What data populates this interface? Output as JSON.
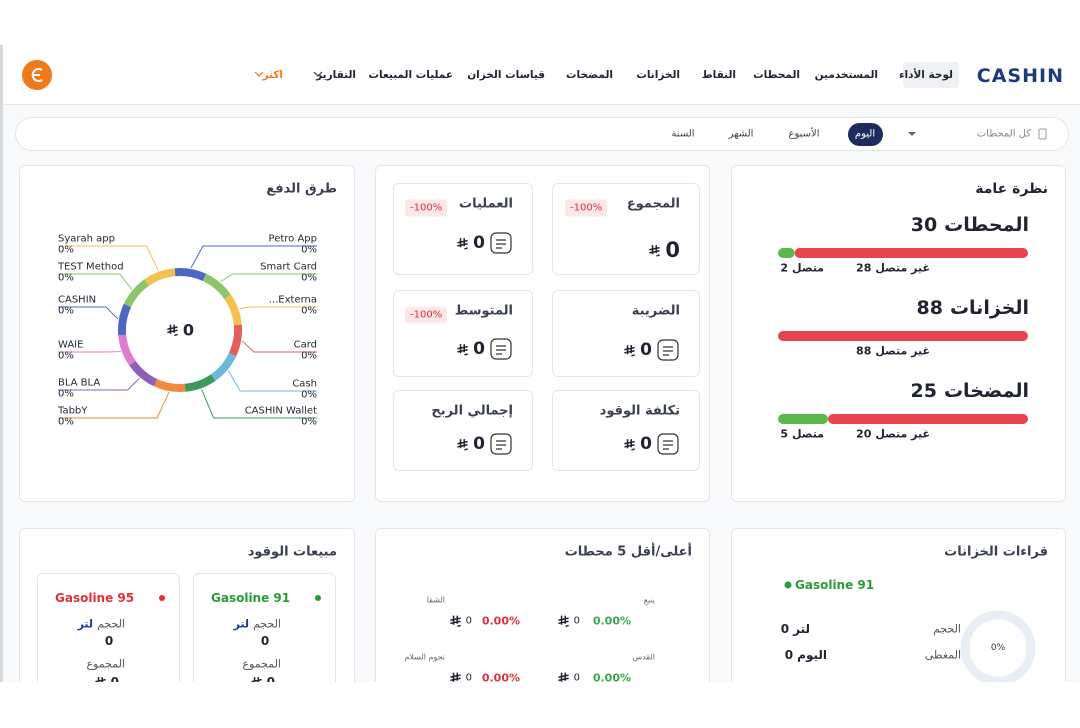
{
  "header": {
    "logo": "CASHIN",
    "nav": [
      "لوحة الأداء",
      "المستخدمين",
      "المحطات",
      "النقاط",
      "الخزانات",
      "المضخات",
      "قياسات الخزان",
      "عمليات المبيعات",
      "التقارير",
      "اكثر"
    ]
  },
  "filter": {
    "station": "كل المحطات",
    "periods": [
      "اليوم",
      "الأسبوع",
      "الشهر",
      "السنة"
    ]
  },
  "overview": {
    "title": "نظرة عامة",
    "offline_label": "غير متصل",
    "online_label": "متصل",
    "items": [
      {
        "count": 30,
        "label": "المحطات",
        "offline": 28,
        "online": 2
      },
      {
        "count": 88,
        "label": "الخزانات",
        "offline": 88
      },
      {
        "count": 25,
        "label": "المضخات",
        "offline": 20,
        "online": 5
      }
    ]
  },
  "kpis": [
    {
      "label": "المجموع",
      "value": 0,
      "change": "-100%"
    },
    {
      "label": "العمليات",
      "value": 0,
      "change": "-100%"
    },
    {
      "label": "الضريبة",
      "value": 0
    },
    {
      "label": "المتوسط",
      "value": 0,
      "change": "-100%"
    },
    {
      "label": "تكلفة الوقود",
      "value": 0
    },
    {
      "label": "إجمالي الربح",
      "value": 0
    }
  ],
  "payments": {
    "title": "طرق الدفع",
    "total": 0,
    "methods": [
      {
        "name": "Petro App",
        "percent": "0%",
        "color": "#4d68c4"
      },
      {
        "name": "Smart Card",
        "percent": "0%",
        "color": "#8cc66b"
      },
      {
        "name": "Externa...",
        "percent": "0%",
        "color": "#f4c24c"
      },
      {
        "name": "Card",
        "percent": "0%",
        "color": "#e65d5d"
      },
      {
        "name": "Cash",
        "percent": "0%",
        "color": "#6bb9dd"
      },
      {
        "name": "CASHIN Wallet",
        "percent": "0%",
        "color": "#3a9a5b"
      },
      {
        "name": "TabbY",
        "percent": "0%",
        "color": "#f08a3c"
      },
      {
        "name": "BLA BLA",
        "percent": "0%",
        "color": "#8d5fba"
      },
      {
        "name": "WAIE",
        "percent": "0%",
        "color": "#e07ccf"
      },
      {
        "name": "CASHIN",
        "percent": "0%",
        "color": "#4d68c4"
      },
      {
        "name": "TEST Method",
        "percent": "0%",
        "color": "#8cc66b"
      },
      {
        "name": "Syarah app",
        "percent": "0%",
        "color": "#f4c24c"
      }
    ]
  },
  "tank_readings": {
    "title": "قراءات الخزانات",
    "fuel": "Gasoline 91",
    "volume_label": "الحجم",
    "volume": 0,
    "volume_unit": "لتر",
    "coverage_label": "المغطى",
    "coverage": 0,
    "coverage_unit": "اليوم",
    "percent": "0%"
  },
  "top_stations": {
    "title": "أعلى/أقل 5 محطات",
    "items": [
      {
        "name": "ينبع",
        "change": "0.00%",
        "value": 0
      },
      {
        "name": "الشفا",
        "change": "0.00%",
        "value": 0
      },
      {
        "name": "القدس",
        "change": "0.00%",
        "value": 0
      },
      {
        "name": "نجوم السلام",
        "change": "0.00%",
        "value": 0
      }
    ]
  },
  "fuel_sales": {
    "title": "مبيعات الوقود",
    "volume_label": "الحجم",
    "unit": "لتر",
    "total_label": "المجموع",
    "fuels": [
      {
        "name": "Gasoline 91",
        "color": "#2a9a3a",
        "volume": 0,
        "total": 0
      },
      {
        "name": "Gasoline 95",
        "color": "#e0303a",
        "volume": 0,
        "total": 0
      }
    ]
  }
}
